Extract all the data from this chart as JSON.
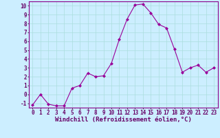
{
  "x": [
    0,
    1,
    2,
    3,
    4,
    5,
    6,
    7,
    8,
    9,
    10,
    11,
    12,
    13,
    14,
    15,
    16,
    17,
    18,
    19,
    20,
    21,
    22,
    23
  ],
  "y": [
    -1.2,
    0.0,
    -1.1,
    -1.3,
    -1.3,
    0.7,
    1.0,
    2.4,
    2.0,
    2.1,
    3.5,
    6.2,
    8.5,
    10.1,
    10.2,
    9.2,
    7.9,
    7.5,
    5.1,
    2.5,
    3.0,
    3.3,
    2.5,
    3.0
  ],
  "line_color": "#990099",
  "marker": "D",
  "marker_size": 2,
  "bg_color": "#cceeff",
  "grid_color": "#aadddd",
  "xlabel": "Windchill (Refroidissement éolien,°C)",
  "xlim": [
    -0.5,
    23.5
  ],
  "ylim": [
    -1.5,
    10.5
  ],
  "yticks": [
    -1,
    0,
    1,
    2,
    3,
    4,
    5,
    6,
    7,
    8,
    9,
    10
  ],
  "xticks": [
    0,
    1,
    2,
    3,
    4,
    5,
    6,
    7,
    8,
    9,
    10,
    11,
    12,
    13,
    14,
    15,
    16,
    17,
    18,
    19,
    20,
    21,
    22,
    23
  ],
  "tick_fontsize": 5.5,
  "xlabel_fontsize": 6.5,
  "spine_color": "#880088",
  "label_color": "#660066"
}
